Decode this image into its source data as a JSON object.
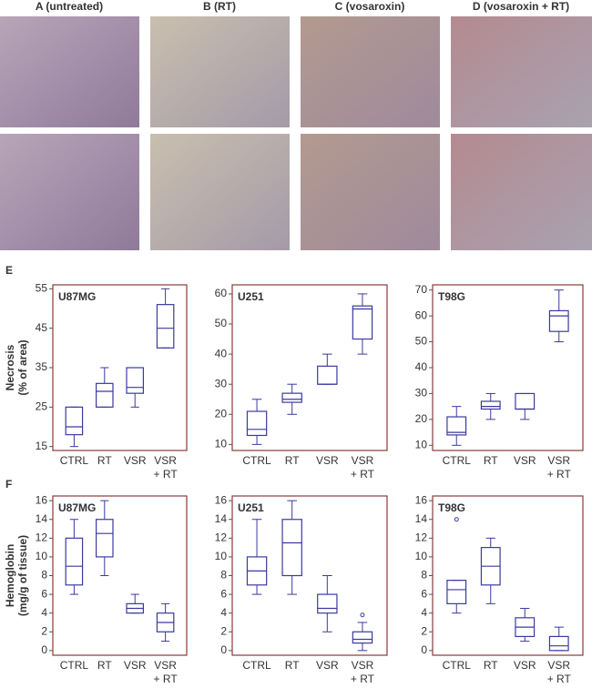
{
  "panels": [
    {
      "label": "A (untreated)"
    },
    {
      "label": "B (RT)"
    },
    {
      "label": "C (vosaroxin)"
    },
    {
      "label": "D (vosaroxin + RT)"
    }
  ],
  "section_labels": [
    "E",
    "F"
  ],
  "chart_data": [
    {
      "type": "box",
      "title": "U87MG",
      "ylabel": [
        "Necrosis",
        "(% of area)"
      ],
      "categories": [
        "CTRL",
        "RT",
        "VSR",
        "VSR + RT"
      ],
      "color": "#3a3aa0",
      "min": [
        15,
        25,
        25,
        40
      ],
      "q1": [
        18,
        25,
        28.5,
        40
      ],
      "median": [
        20,
        29,
        30,
        45
      ],
      "q3": [
        25,
        31,
        35,
        51
      ],
      "max": [
        25,
        35,
        35,
        55
      ],
      "ylim": [
        14,
        56
      ],
      "yticks": [
        15,
        25,
        35,
        45,
        55
      ]
    },
    {
      "type": "box",
      "title": "U251",
      "categories": [
        "CTRL",
        "RT",
        "VSR",
        "VSR + RT"
      ],
      "color": "#3a3aa0",
      "min": [
        10,
        20,
        30,
        40
      ],
      "q1": [
        13,
        24,
        30,
        45
      ],
      "median": [
        15,
        25,
        30,
        55
      ],
      "q3": [
        21,
        27,
        36,
        56
      ],
      "max": [
        25,
        30,
        40,
        60
      ],
      "ylim": [
        8,
        63
      ],
      "yticks": [
        10,
        20,
        30,
        40,
        50,
        60
      ]
    },
    {
      "type": "box",
      "title": "T98G",
      "categories": [
        "CTRL",
        "RT",
        "VSR",
        "VSR + RT"
      ],
      "color": "#3a3aa0",
      "min": [
        10,
        20,
        20,
        50
      ],
      "q1": [
        14,
        24,
        24,
        54
      ],
      "median": [
        15,
        25,
        24,
        60
      ],
      "q3": [
        21,
        27,
        30,
        62
      ],
      "max": [
        25,
        30,
        30,
        70
      ],
      "ylim": [
        8,
        72
      ],
      "yticks": [
        10,
        20,
        30,
        40,
        50,
        60,
        70
      ]
    },
    {
      "type": "box",
      "title": "U87MG",
      "ylabel": [
        "Hemoglobin",
        "(mg/g of tissue)"
      ],
      "categories": [
        "CTRL",
        "RT",
        "VSR",
        "VSR + RT"
      ],
      "color": "#3a3aa0",
      "min": [
        6,
        8,
        4,
        1
      ],
      "q1": [
        7,
        10,
        4,
        2
      ],
      "median": [
        9,
        12.5,
        4.5,
        3
      ],
      "q3": [
        12,
        14,
        5,
        4
      ],
      "max": [
        14,
        16,
        6,
        5
      ],
      "ylim": [
        -0.5,
        16.5
      ],
      "yticks": [
        0,
        2,
        4,
        6,
        8,
        10,
        12,
        14,
        16
      ]
    },
    {
      "type": "box",
      "title": "U251",
      "categories": [
        "CTRL",
        "RT",
        "VSR",
        "VSR + RT"
      ],
      "color": "#3a3aa0",
      "min": [
        6,
        6,
        2,
        0
      ],
      "q1": [
        7,
        8,
        4,
        0.8
      ],
      "median": [
        8.5,
        11.5,
        4.5,
        1.2
      ],
      "q3": [
        10,
        14,
        6,
        2
      ],
      "max": [
        14,
        16,
        8,
        3
      ],
      "outliers": [
        null,
        null,
        null,
        3.8
      ],
      "ylim": [
        -0.5,
        16.5
      ],
      "yticks": [
        0,
        2,
        4,
        6,
        8,
        10,
        12,
        14,
        16
      ]
    },
    {
      "type": "box",
      "title": "T98G",
      "categories": [
        "CTRL",
        "RT",
        "VSR",
        "VSR + RT"
      ],
      "color": "#3a3aa0",
      "min": [
        4,
        5,
        1,
        0
      ],
      "q1": [
        5,
        7,
        1.5,
        0
      ],
      "median": [
        6.5,
        9,
        2.5,
        0.5
      ],
      "q3": [
        7.5,
        11,
        3.5,
        1.5
      ],
      "max": [
        7.5,
        12,
        4.5,
        2.5
      ],
      "outliers": [
        14,
        null,
        null,
        null
      ],
      "ylim": [
        -0.5,
        16.5
      ],
      "yticks": [
        0,
        2,
        4,
        6,
        8,
        10,
        12,
        14,
        16
      ]
    }
  ]
}
